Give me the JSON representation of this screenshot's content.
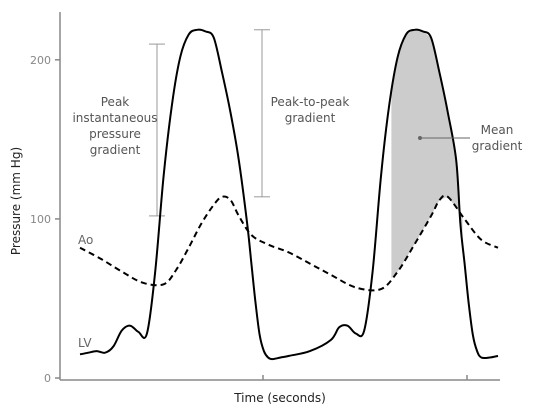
{
  "chart_data": {
    "type": "line",
    "title": "",
    "xlabel": "Time (seconds)",
    "ylabel": "Pressure (mm Hg)",
    "xlim": [
      0,
      1.0
    ],
    "ylim": [
      0,
      220
    ],
    "y_ticks": [
      0,
      100,
      200
    ],
    "y_tick_labels": [
      "0",
      "100",
      "200"
    ],
    "x_ticks": [
      0.5,
      1.0
    ],
    "x_tick_labels": [
      "",
      ""
    ],
    "grid": false,
    "series": [
      {
        "name": "LV",
        "style": "solid",
        "color": "#000000",
        "x": [
          0.0,
          0.02,
          0.04,
          0.06,
          0.08,
          0.1,
          0.12,
          0.14,
          0.16,
          0.18,
          0.2,
          0.22,
          0.24,
          0.26,
          0.28,
          0.3,
          0.32,
          0.34,
          0.36,
          0.38,
          0.4,
          0.41,
          0.42,
          0.43,
          0.44,
          0.45,
          0.46,
          0.48,
          0.5,
          0.55,
          0.6,
          0.62,
          0.64,
          0.66,
          0.68,
          0.7,
          0.72,
          0.74,
          0.76,
          0.78,
          0.8,
          0.82,
          0.84,
          0.86,
          0.88,
          0.9,
          0.91,
          0.92,
          0.93,
          0.94,
          0.95,
          0.96,
          0.98,
          1.0
        ],
        "y": [
          13,
          14,
          15,
          14,
          18,
          28,
          31,
          27,
          26,
          65,
          125,
          170,
          200,
          214,
          217,
          216,
          212,
          190,
          165,
          135,
          95,
          70,
          45,
          25,
          15,
          11,
          10,
          11,
          12,
          15,
          22,
          30,
          31,
          26,
          28,
          65,
          125,
          170,
          200,
          214,
          217,
          216,
          212,
          190,
          165,
          135,
          95,
          70,
          45,
          25,
          15,
          11,
          11,
          12
        ]
      },
      {
        "name": "Ao",
        "style": "dashed",
        "color": "#000000",
        "x": [
          0.0,
          0.05,
          0.1,
          0.15,
          0.2,
          0.23,
          0.26,
          0.29,
          0.32,
          0.34,
          0.36,
          0.38,
          0.41,
          0.45,
          0.5,
          0.55,
          0.6,
          0.66,
          0.72,
          0.76,
          0.8,
          0.84,
          0.86,
          0.88,
          0.92,
          0.96,
          1.0
        ],
        "y": [
          80,
          73,
          65,
          58,
          57,
          66,
          80,
          95,
          107,
          112,
          110,
          100,
          88,
          82,
          77,
          70,
          63,
          55,
          54,
          65,
          82,
          100,
          110,
          112,
          98,
          85,
          80
        ]
      }
    ],
    "shaded_region": {
      "label": "Mean gradient",
      "color": "#cccccc",
      "x_range": [
        0.745,
        0.915
      ],
      "between": [
        "LV",
        "Ao"
      ]
    },
    "annotations": [
      {
        "text": "Peak instantaneous pressure gradient",
        "lines": [
          "Peak",
          "instantaneous",
          "pressure",
          "gradient"
        ],
        "x_data": 0.245,
        "y_from": 100,
        "y_to": 208
      },
      {
        "text": "Peak-to-peak gradient",
        "lines": [
          "Peak-to-peak",
          "gradient"
        ],
        "x_data": 0.5,
        "y_from": 112,
        "y_to": 217
      },
      {
        "text": "Mean gradient",
        "lines": [
          "Mean",
          "gradient"
        ]
      }
    ],
    "series_labels": [
      "Ao",
      "LV"
    ]
  }
}
